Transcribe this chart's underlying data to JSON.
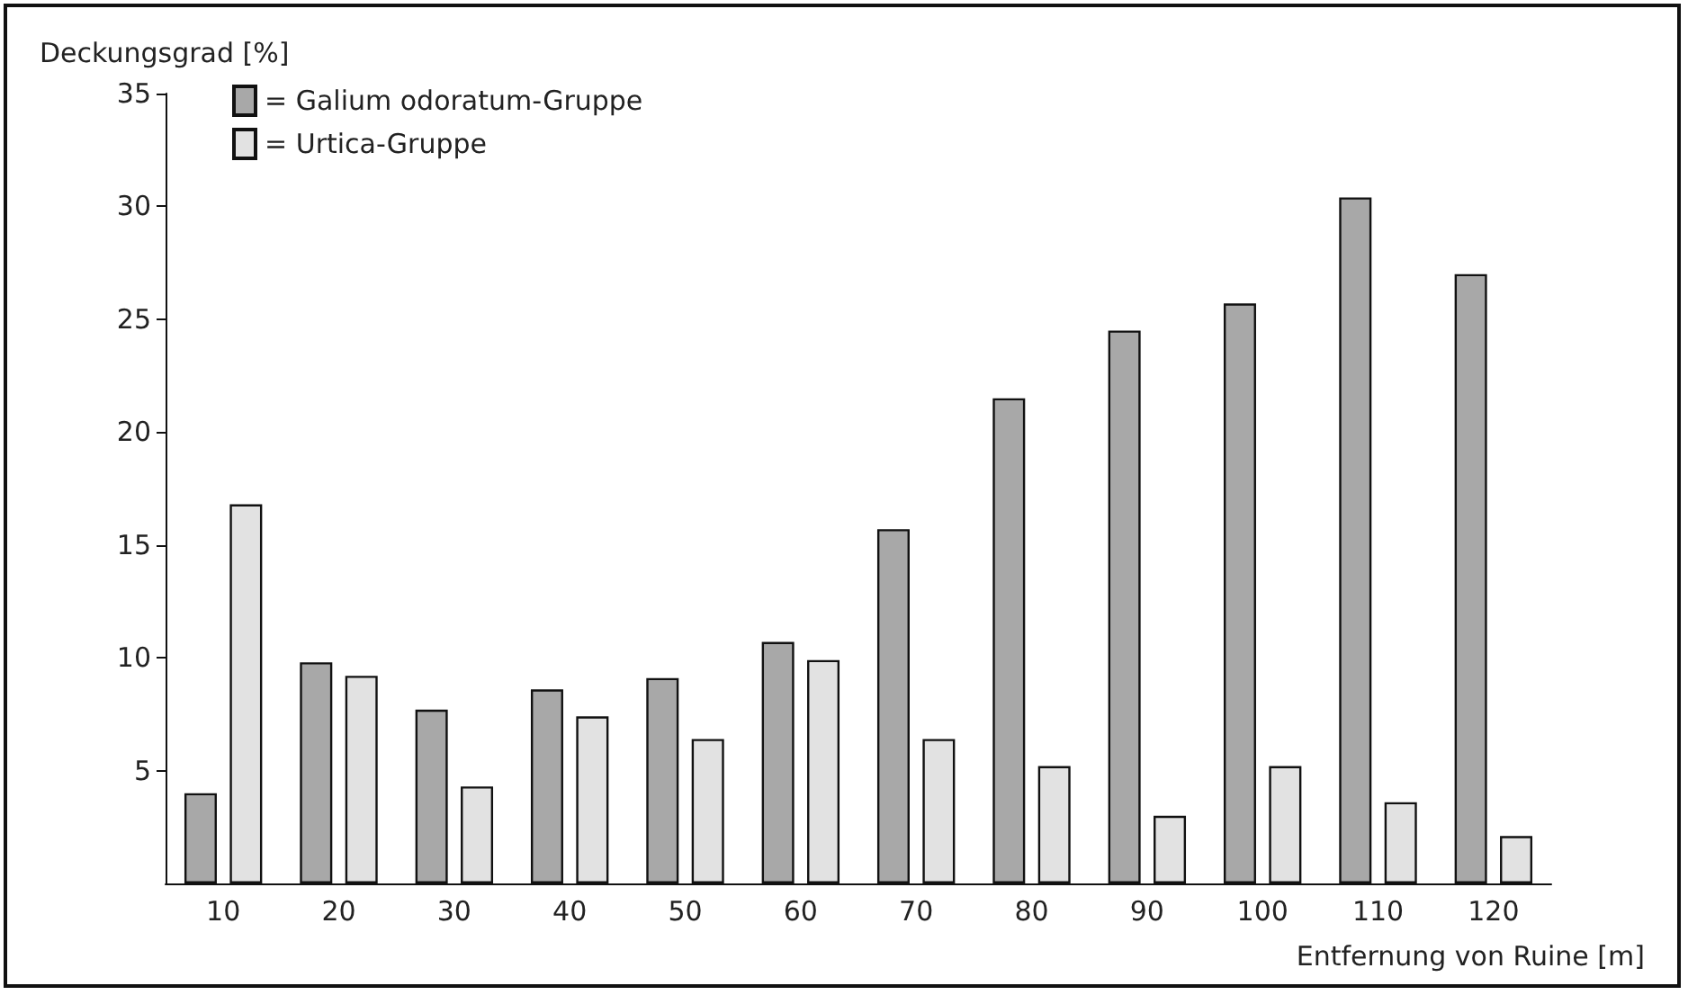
{
  "chart_data": {
    "type": "bar",
    "xlabel": "Entfernung von Ruine [m]",
    "ylabel": "Deckungsgrad [%]",
    "categories": [
      "10",
      "20",
      "30",
      "40",
      "50",
      "60",
      "70",
      "80",
      "90",
      "100",
      "110",
      "120"
    ],
    "series": [
      {
        "name": "= Galium odoratum-Gruppe",
        "color": "#a8a8a8",
        "values": [
          4.0,
          9.8,
          7.7,
          8.6,
          9.1,
          10.7,
          15.7,
          21.5,
          24.5,
          25.7,
          30.4,
          27.0
        ]
      },
      {
        "name": "= Urtica-Gruppe",
        "color": "#e2e2e2",
        "values": [
          16.8,
          9.2,
          4.3,
          7.4,
          6.4,
          9.9,
          6.4,
          5.2,
          3.0,
          5.2,
          3.6,
          2.1
        ]
      }
    ],
    "ylim": [
      0,
      35
    ],
    "yticks": [
      5,
      10,
      15,
      20,
      25,
      30,
      35
    ],
    "grid": false,
    "legend": "top left"
  }
}
